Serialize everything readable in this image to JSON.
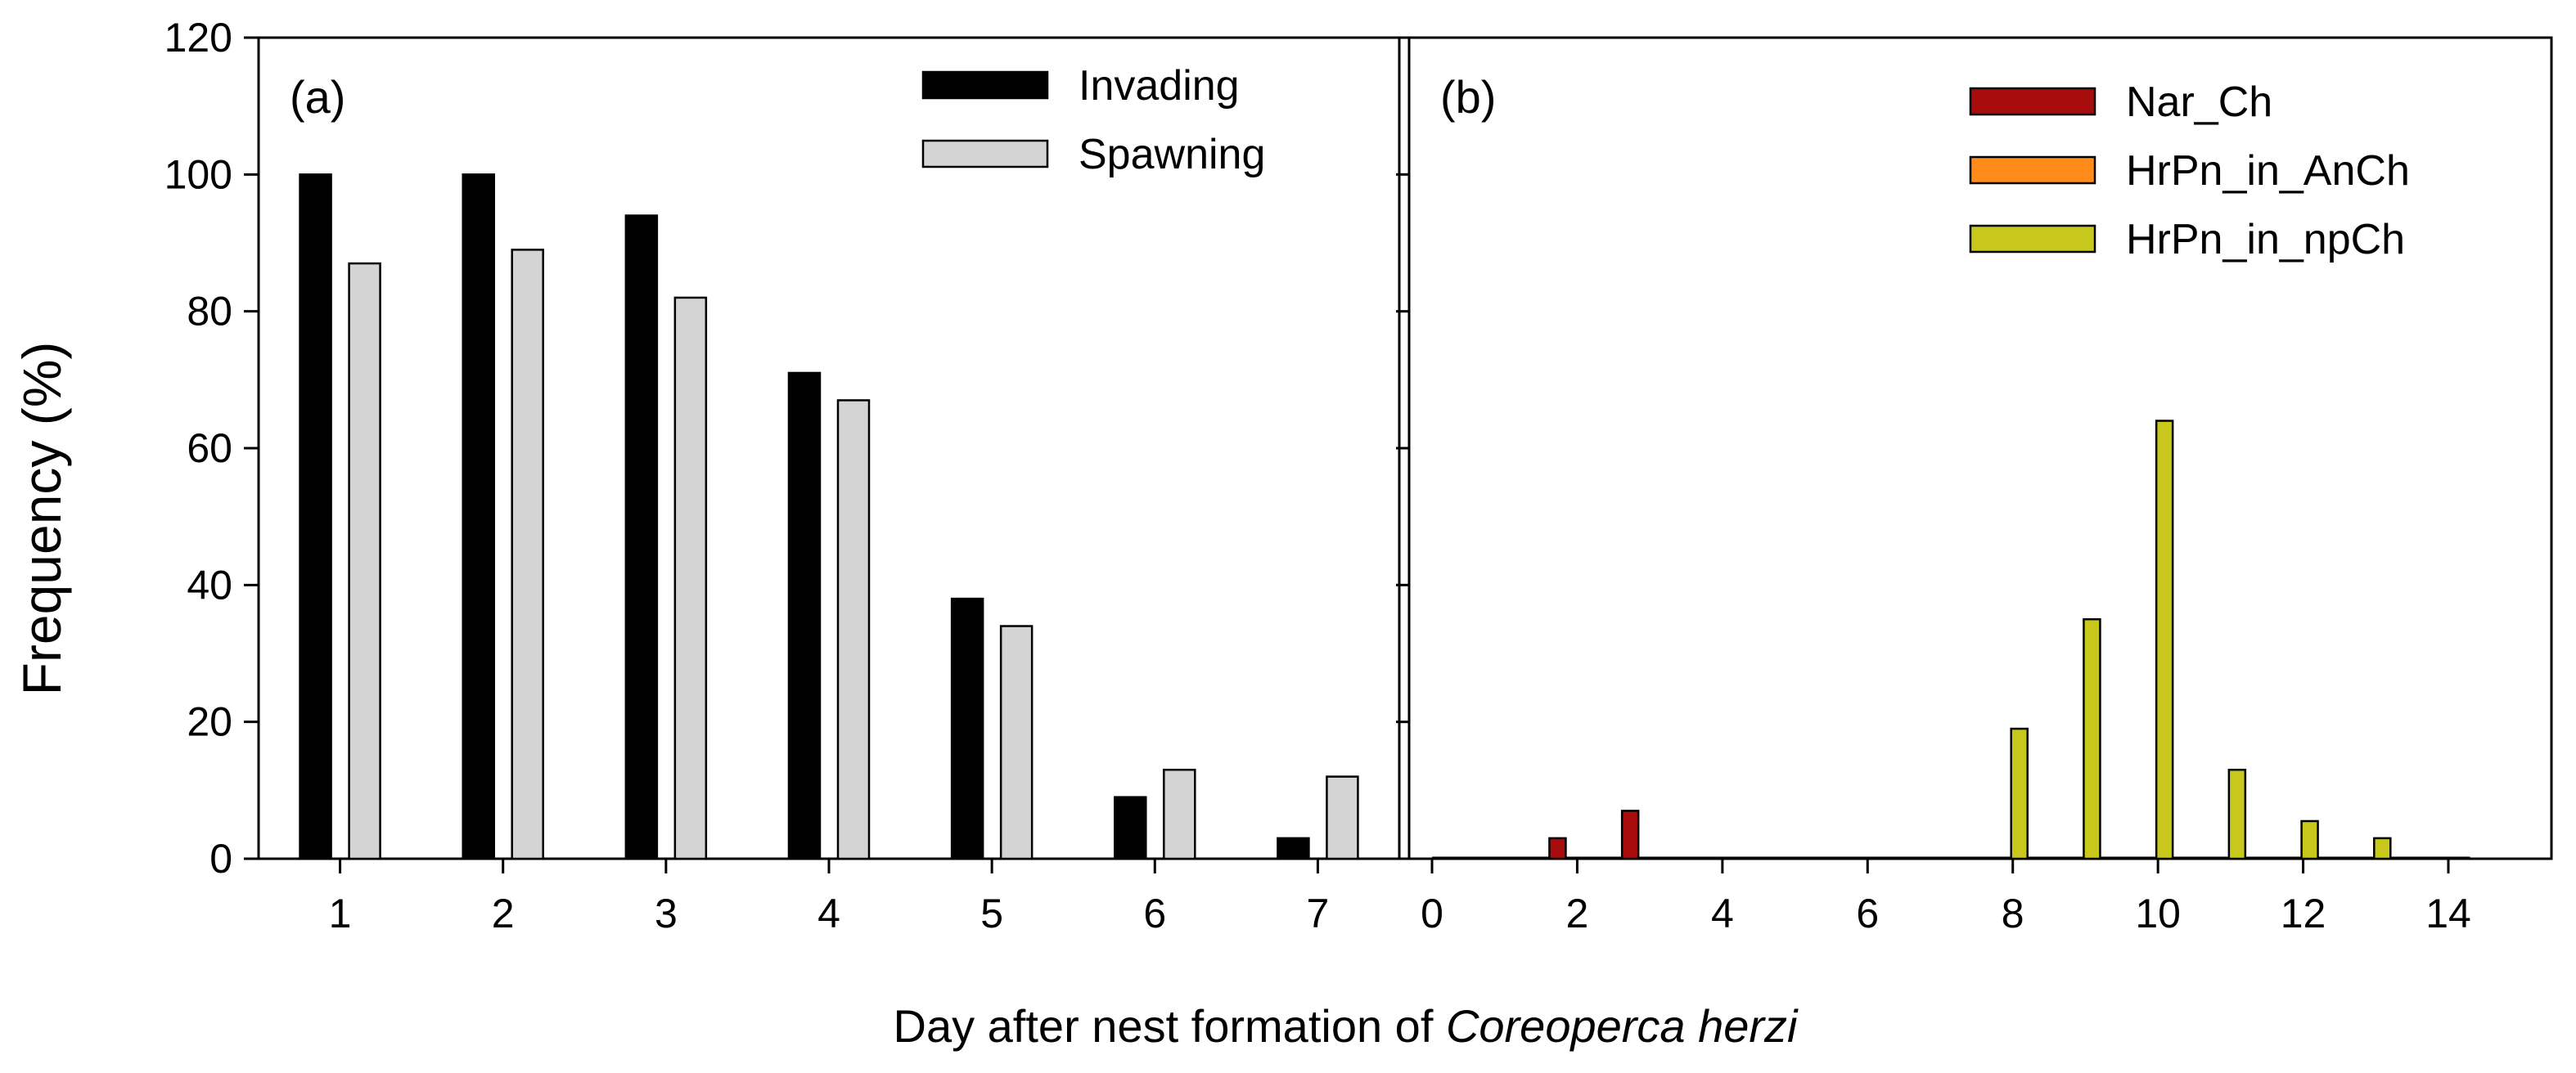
{
  "figure": {
    "ylabel": "Frequency (%)",
    "xlabel_prefix": "Day after nest formation of ",
    "xlabel_species": "Coreoperca herzi"
  },
  "chart_data": [
    {
      "type": "bar",
      "panel_label": "(a)",
      "x": [
        1,
        2,
        3,
        4,
        5,
        6,
        7
      ],
      "xticks": [
        "1",
        "2",
        "3",
        "4",
        "5",
        "6",
        "7"
      ],
      "ylim": [
        0,
        120
      ],
      "yticks": [
        "0",
        "20",
        "40",
        "60",
        "80",
        "100",
        "120"
      ],
      "legend_position": "top-right",
      "series": [
        {
          "name": "Invading",
          "color": "#000000",
          "values": [
            100,
            100,
            94,
            71,
            38,
            9,
            3
          ]
        },
        {
          "name": "Spawning",
          "color": "#d4d4d4",
          "values": [
            87,
            89,
            82,
            67,
            34,
            13,
            12
          ]
        }
      ]
    },
    {
      "type": "bar",
      "panel_label": "(b)",
      "xlim": [
        -0.4,
        15
      ],
      "ylim": [
        0,
        120
      ],
      "xticks": [
        "0",
        "2",
        "4",
        "6",
        "8",
        "10",
        "12",
        "14"
      ],
      "legend_position": "top-right",
      "series": [
        {
          "name": "Nar_Ch",
          "color": "#a80c0c",
          "x": [
            2,
            3
          ],
          "values": [
            3,
            7
          ]
        },
        {
          "name": "HrPn_in_AnCh",
          "color": "#ff8c1a",
          "x": [],
          "values": []
        },
        {
          "name": "HrPn_in_npCh",
          "color": "#c8c81c",
          "x": [
            8,
            9,
            10,
            11,
            12,
            13
          ],
          "values": [
            19,
            35,
            64,
            13,
            5.5,
            3
          ]
        }
      ]
    }
  ]
}
